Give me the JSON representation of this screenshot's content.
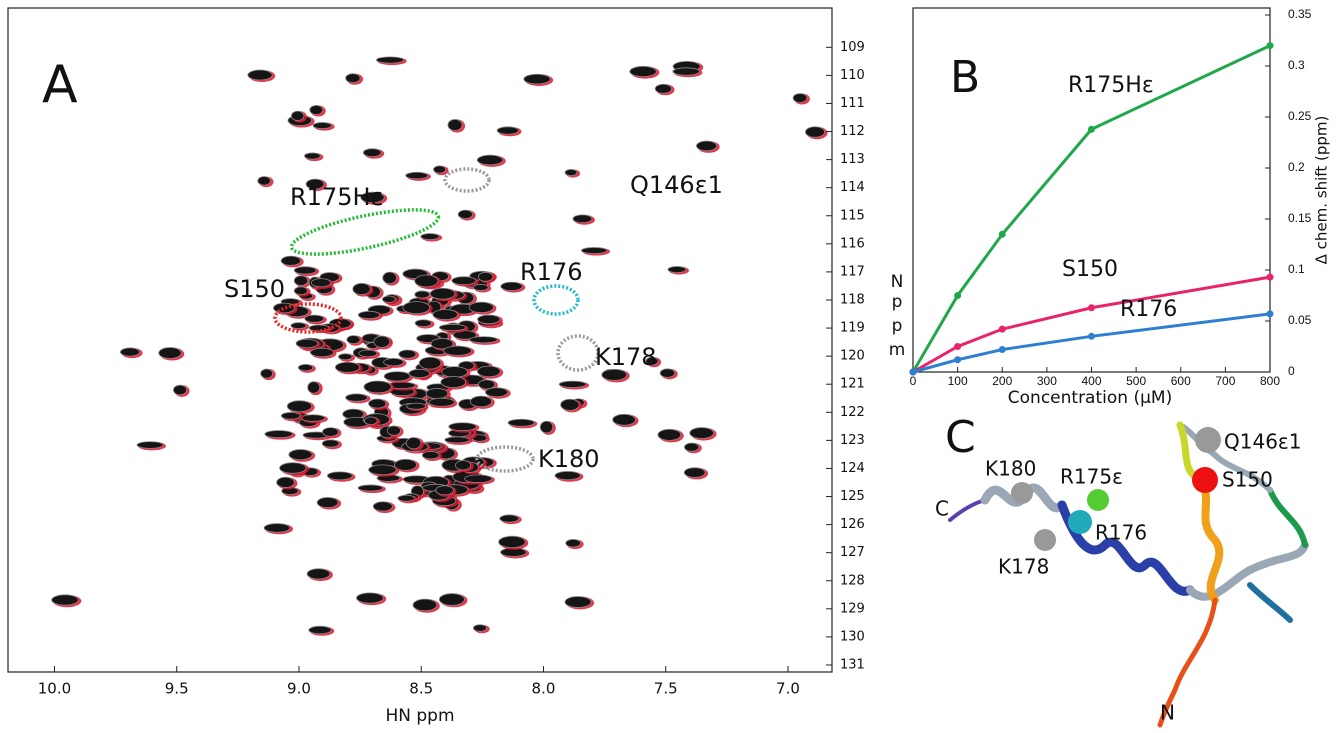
{
  "chart_data": [
    {
      "type": "spectrum",
      "panel": "A",
      "xlabel": "HN ppm",
      "xlim": [
        10.19,
        6.82
      ],
      "ylim": [
        131.25,
        107.6
      ],
      "xticks": [
        {
          "value": 10,
          "label": "10.0"
        },
        9.5,
        {
          "value": 9,
          "label": "9.0"
        },
        8.5,
        {
          "value": 8,
          "label": "8.0"
        },
        7.5,
        {
          "value": 7,
          "label": "7.0"
        }
      ],
      "yticks": [
        109,
        110,
        111,
        112,
        113,
        114,
        115,
        116,
        117,
        118,
        119,
        120,
        121,
        122,
        123,
        124,
        125,
        126,
        127,
        128,
        129,
        130,
        131
      ],
      "annotations": [
        "R175Hε",
        "Q146ε1",
        "S150",
        "R176",
        "K178",
        "K180"
      ]
    },
    {
      "type": "line",
      "panel": "B",
      "xlabel": "Concentration (μM)",
      "ylabel": "Δ chem. shift (ppm)",
      "left_label": [
        "N",
        "p",
        "p",
        "m"
      ],
      "x": [
        0,
        100,
        200,
        400,
        800
      ],
      "series": [
        {
          "name": "R175Hε",
          "color": "#1fa84a",
          "values": [
            0,
            0.075,
            0.135,
            0.238,
            0.32
          ]
        },
        {
          "name": "S150",
          "color": "#e8236a",
          "values": [
            0,
            0.025,
            0.042,
            0.063,
            0.093
          ]
        },
        {
          "name": "R176",
          "color": "#2f7fd0",
          "values": [
            0,
            0.012,
            0.022,
            0.035,
            0.057
          ]
        }
      ],
      "xlim": [
        0,
        800
      ],
      "xticks": [
        0,
        100,
        200,
        300,
        400,
        500,
        600,
        700,
        800
      ],
      "ylim": [
        0,
        0.35
      ],
      "yticks": [
        0,
        0.05,
        0.1,
        0.15,
        0.2,
        0.25,
        0.3,
        0.35
      ]
    }
  ],
  "structure": {
    "panel": "C",
    "labels": [
      "Q146ε1",
      "K180",
      "R175ε",
      "S150",
      "C",
      "R176",
      "K178",
      "N"
    ]
  }
}
